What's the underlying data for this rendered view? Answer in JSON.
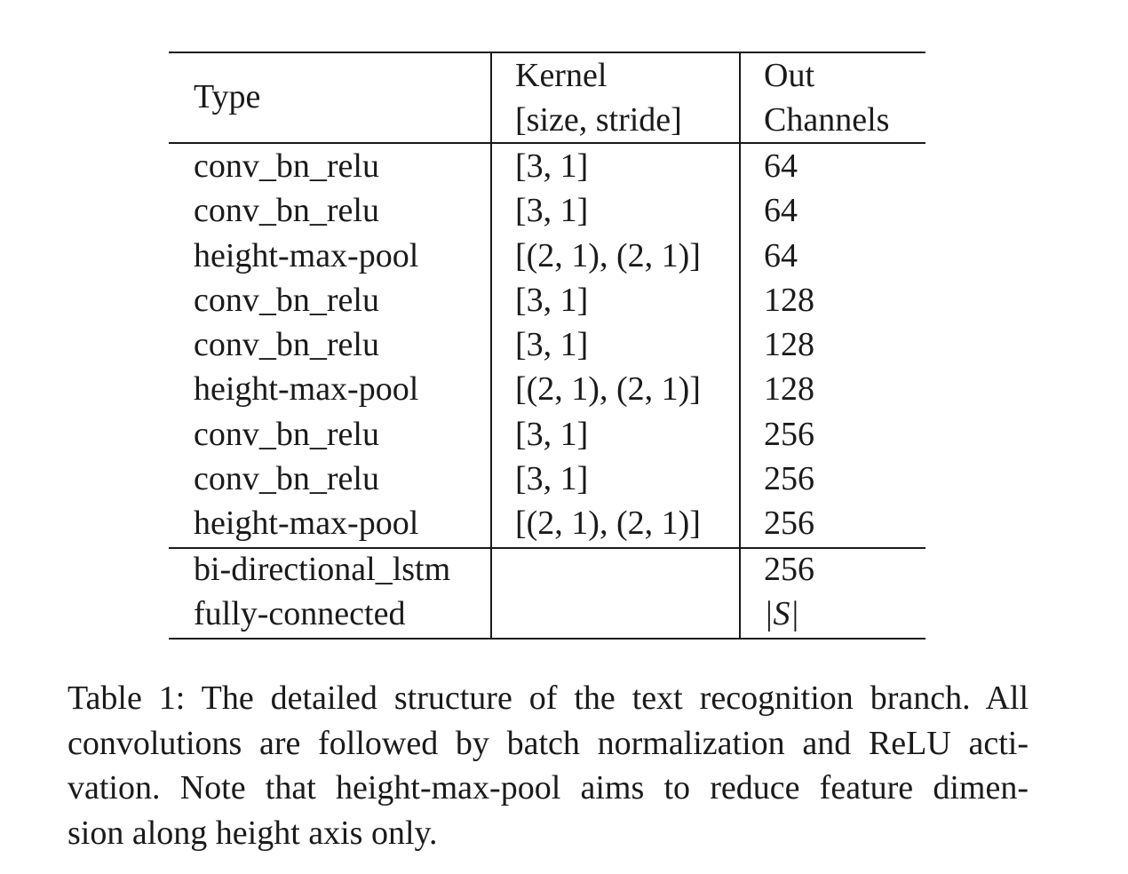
{
  "table": {
    "header": {
      "type": "Type",
      "kernel_line1": "Kernel",
      "kernel_line2": "[size, stride]",
      "out_line1": "Out",
      "out_line2": "Channels"
    },
    "rows": [
      {
        "type": "conv_bn_relu",
        "kernel": "[3, 1]",
        "out": "64"
      },
      {
        "type": "conv_bn_relu",
        "kernel": "[3, 1]",
        "out": "64"
      },
      {
        "type": "height-max-pool",
        "kernel": "[(2, 1), (2, 1)]",
        "out": "64"
      },
      {
        "type": "conv_bn_relu",
        "kernel": "[3, 1]",
        "out": "128"
      },
      {
        "type": "conv_bn_relu",
        "kernel": "[3, 1]",
        "out": "128"
      },
      {
        "type": "height-max-pool",
        "kernel": "[(2, 1), (2, 1)]",
        "out": "128"
      },
      {
        "type": "conv_bn_relu",
        "kernel": "[3, 1]",
        "out": "256"
      },
      {
        "type": "conv_bn_relu",
        "kernel": "[3, 1]",
        "out": "256"
      },
      {
        "type": "height-max-pool",
        "kernel": "[(2, 1), (2, 1)]",
        "out": "256"
      }
    ],
    "tail_rows": [
      {
        "type": "bi-directional_lstm",
        "kernel": "",
        "out": "256"
      },
      {
        "type": "fully-connected",
        "kernel": "",
        "out": "|S|"
      }
    ]
  },
  "caption": {
    "lines": [
      "Table 1: The detailed structure of the text recognition branch. All",
      "convolutions are followed by batch normalization and ReLU acti-",
      "vation. Note that height-max-pool aims to reduce feature dimen-",
      "sion along height axis only."
    ]
  }
}
